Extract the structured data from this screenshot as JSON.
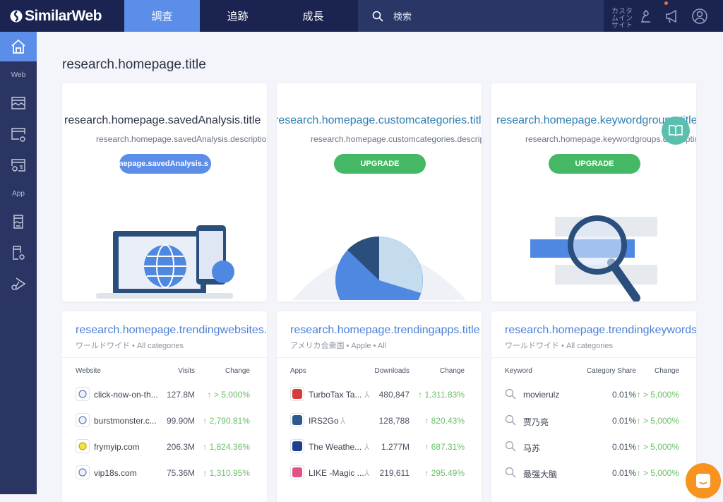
{
  "topbar": {
    "logo": "SimilarWeb",
    "tabs": [
      {
        "label": "調査",
        "active": true
      },
      {
        "label": "追跡"
      },
      {
        "label": "成長"
      }
    ],
    "search_placeholder": "検索",
    "custom_insights": "カスタムインサイト"
  },
  "sidebar": {
    "sections": [
      {
        "label": "Web"
      },
      {
        "label": "App"
      }
    ]
  },
  "page": {
    "title": "research.homepage.title"
  },
  "feature_cards": [
    {
      "title": "research.homepage.savedAnalysis.title",
      "description": "research.homepage.savedAnalysis.description",
      "button": "omepage.savedAnalysis.s",
      "locked": false
    },
    {
      "title": "research.homepage.customcategories.title",
      "description": "research.homepage.customcategories.description",
      "button": "UPGRADE",
      "locked": true
    },
    {
      "title": "research.homepage.keywordgroups.title",
      "description": "research.homepage.keywordgroups.description",
      "button": "UPGRADE",
      "locked": true
    }
  ],
  "trending": [
    {
      "title": "research.homepage.trendingwebsites.title",
      "subtitle": "ワールドワイド • All categories",
      "columns": [
        "Website",
        "Visits",
        "Change"
      ],
      "rows": [
        [
          "click-now-on-th...",
          "127.8M",
          "> 5,000%"
        ],
        [
          "burstmonster.c...",
          "99.90M",
          "2,790.81%"
        ],
        [
          "frymyip.com",
          "206.3M",
          "1,824.36%"
        ],
        [
          "vip18s.com",
          "75.36M",
          "1,310.95%"
        ]
      ]
    },
    {
      "title": "research.homepage.trendingapps.title",
      "subtitle": "アメリカ合衆国 • Apple • All",
      "columns": [
        "Apps",
        "Downloads",
        "Change"
      ],
      "rows": [
        [
          "TurboTax Ta...",
          "480,847",
          "1,311.83%"
        ],
        [
          "IRS2Go",
          "128,788",
          "820.43%"
        ],
        [
          "The Weathe...",
          "1.277M",
          "687.31%"
        ],
        [
          "LIKE -Magic ...",
          "219,611",
          "295.49%"
        ]
      ]
    },
    {
      "title": "research.homepage.trendingkeywords.title",
      "subtitle": "ワールドワイド • All categories",
      "columns": [
        "Keyword",
        "Category Share",
        "Change"
      ],
      "rows": [
        [
          "movierulz",
          "0.01%",
          "> 5,000%"
        ],
        [
          "贾乃亮",
          "0.01%",
          "> 5,000%"
        ],
        [
          "马苏",
          "0.01%",
          "> 5,000%"
        ],
        [
          "最强大脑",
          "0.01%",
          "> 5,000%"
        ]
      ]
    }
  ],
  "colors": {
    "topbar": "#1b2350",
    "sidebar": "#2a3563",
    "accent": "#5b8de9",
    "upgrade": "#45b865",
    "positive": "#6cbf6a",
    "chat": "#f7931e"
  }
}
